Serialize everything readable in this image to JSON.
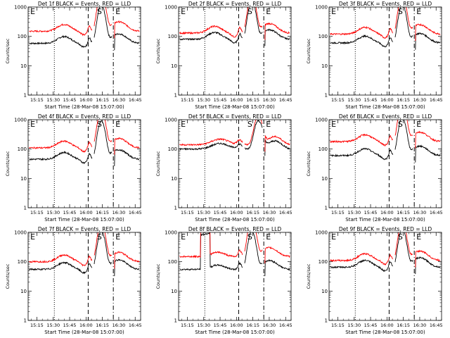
{
  "colors": {
    "events": "#000000",
    "lld": "#ff0000",
    "axes": "#000000"
  },
  "chart_data": [
    {
      "type": "line",
      "title": "Det 1f BLACK = Events, RED = LLD",
      "xlabel": "Start Time (28-Mar-08 15:07:00)",
      "ylabel": "Counts/sec",
      "y_scale": "log",
      "ylim": [
        1,
        1000
      ],
      "xlim": [
        "15:07",
        "16:50"
      ],
      "x_ticks": [
        "15:15",
        "15:30",
        "15:45",
        "16:00",
        "16:15",
        "16:30",
        "16:45"
      ],
      "y_ticks": [
        "1",
        "10",
        "100",
        "1000"
      ],
      "markers": [
        {
          "label": "E",
          "time": "15:09"
        },
        {
          "label": "S",
          "time": "16:10"
        },
        {
          "label": "E",
          "time": "16:27"
        }
      ],
      "vlines": [
        {
          "time": "15:31",
          "style": "dotted"
        },
        {
          "time": "16:02",
          "style": "dashed"
        },
        {
          "time": "16:25",
          "style": "dashdot"
        }
      ],
      "series": [
        {
          "name": "Events",
          "color": "#000000",
          "profile": "A",
          "base": 58
        },
        {
          "name": "LLD",
          "color": "#ff0000",
          "profile": "A",
          "base": 150
        }
      ]
    },
    {
      "type": "line",
      "title": "Det 2f BLACK = Events, RED = LLD",
      "xlabel": "Start Time (28-Mar-08 15:07:00)",
      "ylabel": "Counts/sec",
      "y_scale": "log",
      "ylim": [
        1,
        1000
      ],
      "xlim": [
        "15:07",
        "16:50"
      ],
      "x_ticks": [
        "15:15",
        "15:30",
        "15:45",
        "16:00",
        "16:15",
        "16:30",
        "16:45"
      ],
      "y_ticks": [
        "1",
        "10",
        "100",
        "1000"
      ],
      "markers": [
        {
          "label": "E",
          "time": "15:09"
        },
        {
          "label": "S",
          "time": "16:10"
        },
        {
          "label": "E",
          "time": "16:27"
        }
      ],
      "vlines": [
        {
          "time": "15:31",
          "style": "dotted"
        },
        {
          "time": "16:02",
          "style": "dashed"
        },
        {
          "time": "16:25",
          "style": "dashdot"
        }
      ],
      "series": [
        {
          "name": "Events",
          "color": "#000000",
          "profile": "A",
          "base": 80
        },
        {
          "name": "LLD",
          "color": "#ff0000",
          "profile": "A",
          "base": 130
        }
      ]
    },
    {
      "type": "line",
      "title": "Det 3f BLACK = Events, RED = LLD",
      "xlabel": "Start Time (28-Mar-08 15:07:00)",
      "ylabel": "Counts/sec",
      "y_scale": "log",
      "ylim": [
        1,
        1000
      ],
      "xlim": [
        "15:07",
        "16:50"
      ],
      "x_ticks": [
        "15:15",
        "15:30",
        "15:45",
        "16:00",
        "16:15",
        "16:30",
        "16:45"
      ],
      "y_ticks": [
        "1",
        "10",
        "100",
        "1000"
      ],
      "markers": [
        {
          "label": "E",
          "time": "15:09"
        },
        {
          "label": "S",
          "time": "16:10"
        },
        {
          "label": "E",
          "time": "16:27"
        }
      ],
      "vlines": [
        {
          "time": "15:31",
          "style": "dotted"
        },
        {
          "time": "16:02",
          "style": "dashed"
        },
        {
          "time": "16:25",
          "style": "dashdot"
        }
      ],
      "series": [
        {
          "name": "Events",
          "color": "#000000",
          "profile": "A",
          "base": 60
        },
        {
          "name": "LLD",
          "color": "#ff0000",
          "profile": "A",
          "base": 120
        }
      ]
    },
    {
      "type": "line",
      "title": "Det 4f BLACK = Events, RED = LLD",
      "xlabel": "Start Time (28-Mar-08 15:07:00)",
      "ylabel": "Counts/sec",
      "y_scale": "log",
      "ylim": [
        1,
        1000
      ],
      "xlim": [
        "15:07",
        "16:50"
      ],
      "x_ticks": [
        "15:15",
        "15:30",
        "15:45",
        "16:00",
        "16:15",
        "16:30",
        "16:45"
      ],
      "y_ticks": [
        "1",
        "10",
        "100",
        "1000"
      ],
      "markers": [
        {
          "label": "E",
          "time": "15:09"
        },
        {
          "label": "S",
          "time": "16:10"
        },
        {
          "label": "E",
          "time": "16:27"
        }
      ],
      "vlines": [
        {
          "time": "15:31",
          "style": "dotted"
        },
        {
          "time": "16:02",
          "style": "dashed"
        },
        {
          "time": "16:25",
          "style": "dashdot"
        }
      ],
      "series": [
        {
          "name": "Events",
          "color": "#000000",
          "profile": "A",
          "base": 45
        },
        {
          "name": "LLD",
          "color": "#ff0000",
          "profile": "A",
          "base": 110
        }
      ]
    },
    {
      "type": "line",
      "title": "Det 5f BLACK = Events, RED = LLD",
      "xlabel": "Start Time (28-Mar-08 15:07:00)",
      "ylabel": "Counts/sec",
      "y_scale": "log",
      "ylim": [
        1,
        1000
      ],
      "xlim": [
        "15:07",
        "16:50"
      ],
      "x_ticks": [
        "15:15",
        "15:30",
        "15:45",
        "16:00",
        "16:15",
        "16:30",
        "16:45"
      ],
      "y_ticks": [
        "1",
        "10",
        "100",
        "1000"
      ],
      "markers": [
        {
          "label": "E",
          "time": "15:09"
        },
        {
          "label": "S",
          "time": "16:10"
        },
        {
          "label": "E",
          "time": "16:27"
        }
      ],
      "vlines": [
        {
          "time": "15:31",
          "style": "dotted"
        },
        {
          "time": "16:02",
          "style": "dashed"
        },
        {
          "time": "16:25",
          "style": "dashdot"
        }
      ],
      "series": [
        {
          "name": "Events",
          "color": "#000000",
          "profile": "B",
          "base": 100
        },
        {
          "name": "LLD",
          "color": "#ff0000",
          "profile": "B",
          "base": 140
        }
      ]
    },
    {
      "type": "line",
      "title": "Det 6f BLACK = Events, RED = LLD",
      "xlabel": "Start Time (28-Mar-08 15:07:00)",
      "ylabel": "Counts/sec",
      "y_scale": "log",
      "ylim": [
        1,
        1000
      ],
      "xlim": [
        "15:07",
        "16:50"
      ],
      "x_ticks": [
        "15:15",
        "15:30",
        "15:45",
        "16:00",
        "16:15",
        "16:30",
        "16:45"
      ],
      "y_ticks": [
        "1",
        "10",
        "100",
        "1000"
      ],
      "markers": [
        {
          "label": "E",
          "time": "15:09"
        },
        {
          "label": "S",
          "time": "16:10"
        },
        {
          "label": "E",
          "time": "16:27"
        }
      ],
      "vlines": [
        {
          "time": "15:31",
          "style": "dotted"
        },
        {
          "time": "16:02",
          "style": "dashed"
        },
        {
          "time": "16:25",
          "style": "dashdot"
        }
      ],
      "series": [
        {
          "name": "Events",
          "color": "#000000",
          "profile": "A",
          "base": 60
        },
        {
          "name": "LLD",
          "color": "#ff0000",
          "profile": "A",
          "base": 180
        }
      ]
    },
    {
      "type": "line",
      "title": "Det 7f BLACK = Events, RED = LLD",
      "xlabel": "Start Time (28-Mar-08 15:07:00)",
      "ylabel": "Counts/sec",
      "y_scale": "log",
      "ylim": [
        1,
        1000
      ],
      "xlim": [
        "15:07",
        "16:50"
      ],
      "x_ticks": [
        "15:15",
        "15:30",
        "15:45",
        "16:00",
        "16:15",
        "16:30",
        "16:45"
      ],
      "y_ticks": [
        "1",
        "10",
        "100",
        "1000"
      ],
      "markers": [
        {
          "label": "E",
          "time": "15:09"
        },
        {
          "label": "S",
          "time": "16:10"
        },
        {
          "label": "E",
          "time": "16:27"
        }
      ],
      "vlines": [
        {
          "time": "15:31",
          "style": "dotted"
        },
        {
          "time": "16:02",
          "style": "dashed"
        },
        {
          "time": "16:25",
          "style": "dashdot"
        }
      ],
      "series": [
        {
          "name": "Events",
          "color": "#000000",
          "profile": "A",
          "base": 55
        },
        {
          "name": "LLD",
          "color": "#ff0000",
          "profile": "A",
          "base": 100
        }
      ]
    },
    {
      "type": "line",
      "title": "Det 8f BLACK = Events, RED = LLD",
      "xlabel": "Start Time (28-Mar-08 15:07:00)",
      "ylabel": "Counts/sec",
      "y_scale": "log",
      "ylim": [
        1,
        1000
      ],
      "xlim": [
        "15:07",
        "16:50"
      ],
      "x_ticks": [
        "15:15",
        "15:30",
        "15:45",
        "16:00",
        "16:15",
        "16:30",
        "16:45"
      ],
      "y_ticks": [
        "1",
        "10",
        "100",
        "1000"
      ],
      "markers": [
        {
          "label": "E",
          "time": "15:09"
        },
        {
          "label": "S",
          "time": "16:10"
        },
        {
          "label": "E",
          "time": "16:27"
        }
      ],
      "vlines": [
        {
          "time": "15:31",
          "style": "dotted"
        },
        {
          "time": "16:02",
          "style": "dashed"
        },
        {
          "time": "16:25",
          "style": "dashdot"
        }
      ],
      "series": [
        {
          "name": "Events",
          "color": "#000000",
          "profile": "C",
          "base": 55
        },
        {
          "name": "LLD",
          "color": "#ff0000",
          "profile": "C",
          "base": 150
        }
      ]
    },
    {
      "type": "line",
      "title": "Det 9f BLACK = Events, RED = LLD",
      "xlabel": "Start Time (28-Mar-08 15:07:00)",
      "ylabel": "Counts/sec",
      "y_scale": "log",
      "ylim": [
        1,
        1000
      ],
      "xlim": [
        "15:07",
        "16:50"
      ],
      "x_ticks": [
        "15:15",
        "15:30",
        "15:45",
        "16:00",
        "16:15",
        "16:30",
        "16:45"
      ],
      "y_ticks": [
        "1",
        "10",
        "100",
        "1000"
      ],
      "markers": [
        {
          "label": "E",
          "time": "15:09"
        },
        {
          "label": "S",
          "time": "16:10"
        },
        {
          "label": "E",
          "time": "16:27"
        }
      ],
      "vlines": [
        {
          "time": "15:31",
          "style": "dotted"
        },
        {
          "time": "16:02",
          "style": "dashed"
        },
        {
          "time": "16:25",
          "style": "dashdot"
        }
      ],
      "series": [
        {
          "name": "Events",
          "color": "#000000",
          "profile": "A",
          "base": 65
        },
        {
          "name": "LLD",
          "color": "#ff0000",
          "profile": "A",
          "base": 110
        }
      ]
    }
  ]
}
